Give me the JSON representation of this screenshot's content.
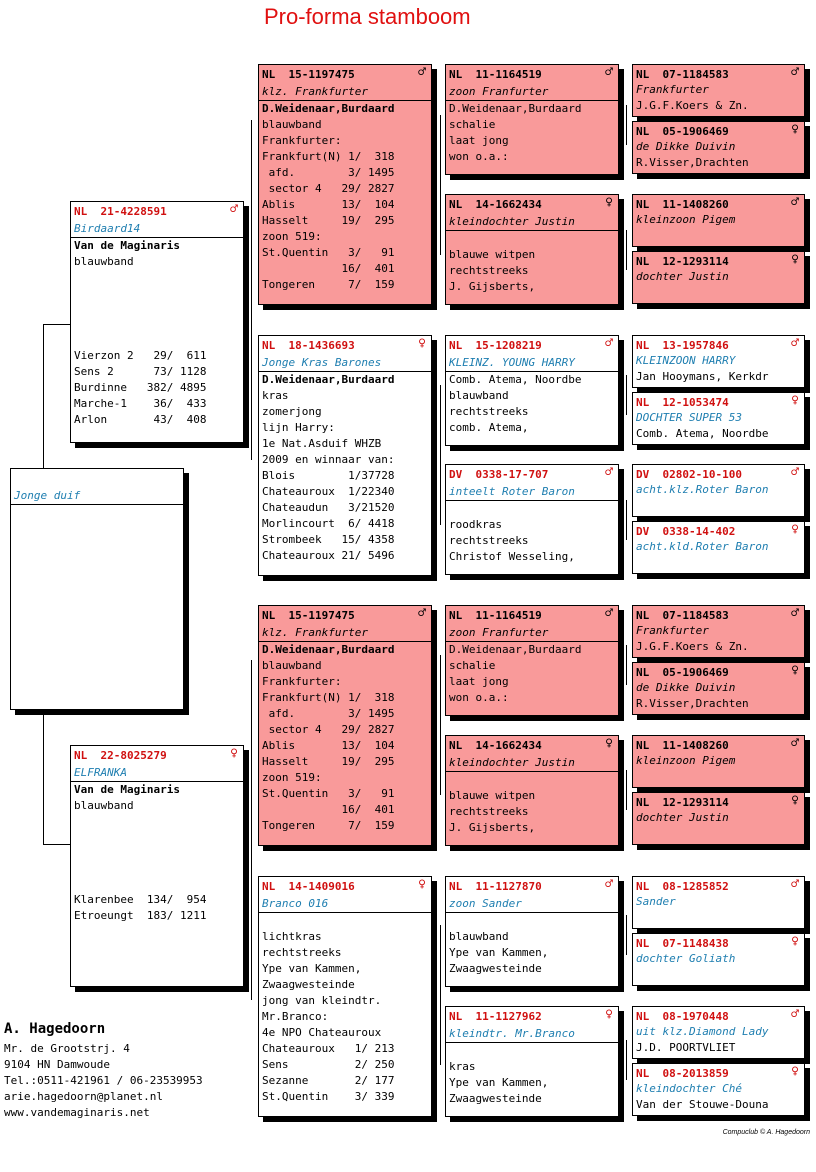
{
  "title": "Pro-forma stamboom",
  "colors": {
    "title": "#e01010",
    "ring": "#d01010",
    "name": "#1e7eb0",
    "highlight": "#f99a9a"
  },
  "subject": {
    "name": "Jonge duif"
  },
  "father": {
    "ring": "NL  21-4228591",
    "sex": "♂",
    "name": "Birdaard14",
    "lines": [
      "Van de Maginaris",
      "blauwband"
    ],
    "results": [
      "Vierzon 2   29/  611",
      "Sens 2      73/ 1128",
      "Burdinne   382/ 4895",
      "Marche-1    36/  433",
      "Arlon       43/  408"
    ]
  },
  "mother": {
    "ring": "NL  22-8025279",
    "sex": "♀",
    "name": "ELFRANKA",
    "lines": [
      "Van de Maginaris",
      "blauwband"
    ],
    "results": [
      "Klarenbee  134/  954",
      "Etroeungt  183/ 1211"
    ]
  },
  "ff": {
    "ring": "NL  15-1197475",
    "sex": "♂",
    "name": "klz. Frankfurter",
    "lines": [
      "D.Weidenaar,Burdaard",
      "blauwband",
      "Frankfurter:",
      "Frankfurt(N) 1/  318",
      " afd.        3/ 1495",
      " sector 4   29/ 2827",
      "Ablis       13/  104",
      "Hasselt     19/  295",
      "zoon 519:",
      "St.Quentin   3/   91",
      "            16/  401",
      "Tongeren     7/  159"
    ]
  },
  "fm": {
    "ring": "NL  18-1436693",
    "sex": "♀",
    "name": "Jonge Kras Barones",
    "lines": [
      "D.Weidenaar,Burdaard",
      "kras",
      "zomerjong",
      "lijn Harry:",
      "1e Nat.Asduif WHZB",
      "2009 en winnaar van:",
      "Blois        1/37728",
      "Chateauroux  1/22340",
      "Chateaudun   3/21520",
      "Morlincourt  6/ 4418",
      "Strombeek   15/ 4358",
      "Chateauroux 21/ 5496"
    ]
  },
  "mf": {
    "ring": "NL  15-1197475",
    "sex": "♂",
    "name": "klz. Frankfurter",
    "lines": [
      "D.Weidenaar,Burdaard",
      "blauwband",
      "Frankfurter:",
      "Frankfurt(N) 1/  318",
      " afd.        3/ 1495",
      " sector 4   29/ 2827",
      "Ablis       13/  104",
      "Hasselt     19/  295",
      "zoon 519:",
      "St.Quentin   3/   91",
      "            16/  401",
      "Tongeren     7/  159"
    ]
  },
  "mm": {
    "ring": "NL  14-1409016",
    "sex": "♀",
    "name": "Branco 016",
    "lines": [
      "",
      "lichtkras",
      "rechtstreeks",
      "Ype van Kammen,",
      "Zwaagwesteinde",
      "jong van kleindtr.",
      "Mr.Branco:",
      "4e NPO Chateauroux",
      "Chateauroux   1/ 213",
      "Sens          2/ 250",
      "Sezanne       2/ 177",
      "St.Quentin    3/ 339"
    ]
  },
  "ggp": [
    {
      "ring": "NL  11-1164519",
      "sex": "♂",
      "name": "zoon Franfurter",
      "lines": [
        "D.Weidenaar,Burdaard",
        "schalie",
        "laat jong",
        "won o.a.:"
      ]
    },
    {
      "ring": "NL  14-1662434",
      "sex": "♀",
      "name": "kleindochter Justin",
      "lines": [
        "",
        "blauwe witpen",
        "rechtstreeks",
        "J. Gijsberts,"
      ]
    },
    {
      "ring": "NL  15-1208219",
      "sex": "♂",
      "name": "KLEINZ. YOUNG HARRY",
      "lines": [
        "Comb. Atema, Noordbe",
        "blauwband",
        "rechtstreeks",
        "comb. Atema,"
      ]
    },
    {
      "ring": "DV  0338-17-707",
      "sex": "♂",
      "name": "inteelt Roter Baron",
      "lines": [
        "",
        "roodkras",
        "rechtstreeks",
        "Christof Wesseling,"
      ]
    },
    {
      "ring": "NL  11-1164519",
      "sex": "♂",
      "name": "zoon Franfurter",
      "lines": [
        "D.Weidenaar,Burdaard",
        "schalie",
        "laat jong",
        "won o.a.:"
      ]
    },
    {
      "ring": "NL  14-1662434",
      "sex": "♀",
      "name": "kleindochter Justin",
      "lines": [
        "",
        "blauwe witpen",
        "rechtstreeks",
        "J. Gijsberts,"
      ]
    },
    {
      "ring": "NL  11-1127870",
      "sex": "♂",
      "name": "zoon Sander",
      "lines": [
        "",
        "blauwband",
        "Ype van Kammen,",
        "Zwaagwesteinde"
      ]
    },
    {
      "ring": "NL  11-1127962",
      "sex": "♀",
      "name": "kleindtr. Mr.Branco",
      "lines": [
        "",
        "kras",
        "Ype van Kammen,",
        "Zwaagwesteinde"
      ]
    }
  ],
  "gggp": [
    {
      "ring": "NL  07-1184583",
      "sex": "♂",
      "name": "Frankfurter",
      "lines": [
        "J.G.F.Koers & Zn."
      ]
    },
    {
      "ring": "NL  05-1906469",
      "sex": "♀",
      "name": "de Dikke Duivin",
      "lines": [
        "R.Visser,Drachten"
      ]
    },
    {
      "ring": "NL  11-1408260",
      "sex": "♂",
      "name": "kleinzoon Pigem",
      "lines": [
        ""
      ]
    },
    {
      "ring": "NL  12-1293114",
      "sex": "♀",
      "name": "dochter Justin",
      "lines": [
        ""
      ]
    },
    {
      "ring": "NL  13-1957846",
      "sex": "♂",
      "name": "KLEINZOON HARRY",
      "lines": [
        "Jan Hooymans, Kerkdr"
      ]
    },
    {
      "ring": "NL  12-1053474",
      "sex": "♀",
      "name": "DOCHTER SUPER 53",
      "lines": [
        "Comb. Atema, Noordbe"
      ]
    },
    {
      "ring": "DV  02802-10-100",
      "sex": "♂",
      "name": "acht.klz.Roter Baron",
      "lines": [
        ""
      ]
    },
    {
      "ring": "DV  0338-14-402",
      "sex": "♀",
      "name": "acht.kld.Roter Baron",
      "lines": [
        ""
      ]
    },
    {
      "ring": "NL  07-1184583",
      "sex": "♂",
      "name": "Frankfurter",
      "lines": [
        "J.G.F.Koers & Zn."
      ]
    },
    {
      "ring": "NL  05-1906469",
      "sex": "♀",
      "name": "de Dikke Duivin",
      "lines": [
        "R.Visser,Drachten"
      ]
    },
    {
      "ring": "NL  11-1408260",
      "sex": "♂",
      "name": "kleinzoon Pigem",
      "lines": [
        ""
      ]
    },
    {
      "ring": "NL  12-1293114",
      "sex": "♀",
      "name": "dochter Justin",
      "lines": [
        ""
      ]
    },
    {
      "ring": "NL  08-1285852",
      "sex": "♂",
      "name": "Sander",
      "lines": [
        ""
      ]
    },
    {
      "ring": "NL  07-1148438",
      "sex": "♀",
      "name": "dochter Goliath",
      "lines": [
        ""
      ]
    },
    {
      "ring": "NL  08-1970448",
      "sex": "♂",
      "name": "uit klz.Diamond Lady",
      "lines": [
        "J.D. POORTVLIET"
      ]
    },
    {
      "ring": "NL  08-2013859",
      "sex": "♀",
      "name": "kleindochter Ché",
      "lines": [
        "Van der Stouwe-Douna"
      ]
    }
  ],
  "owner": {
    "name": "A. Hagedoorn",
    "address": "Mr. de Grootstrj. 4",
    "city": "9104 HN  Damwoude",
    "phone": "Tel.:0511-421961 / 06-23539953",
    "email": "arie.hagedoorn@planet.nl",
    "web": "www.vandemaginaris.net"
  },
  "footer": "Compuclub © A. Hagedoorn"
}
